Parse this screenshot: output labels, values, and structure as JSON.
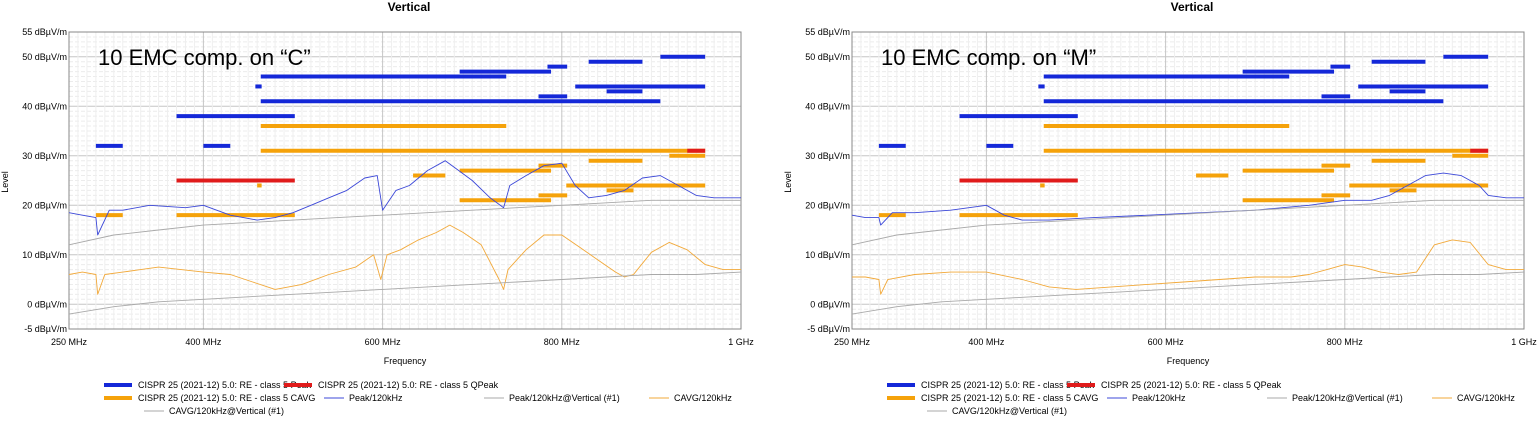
{
  "colors": {
    "peak_limit": "#1428d8",
    "qpeak_limit": "#e01b1b",
    "cavg_limit": "#f5a20a",
    "peak_trace": "#3c48d8",
    "cavg_trace": "#f2a93a",
    "ref_trace": "#a9a9a9"
  },
  "legend": [
    {
      "label": "CISPR 25 (2021-12) 5.0: RE - class 5 Peak",
      "style": "thick",
      "color": "#1428d8"
    },
    {
      "label": "CISPR 25 (2021-12) 5.0: RE - class 5 QPeak",
      "style": "thick",
      "color": "#e01b1b"
    },
    {
      "label": "CISPR 25 (2021-12) 5.0: RE - class 5 CAVG",
      "style": "thick",
      "color": "#f5a20a"
    },
    {
      "label": "Peak/120kHz",
      "style": "thin",
      "color": "#3c48d8"
    },
    {
      "label": "Peak/120kHz@Vertical (#1)",
      "style": "thin",
      "color": "#a9a9a9"
    },
    {
      "label": "CAVG/120kHz",
      "style": "thin",
      "color": "#f2a93a"
    },
    {
      "label": "CAVG/120kHz@Vertical (#1)",
      "style": "thin",
      "color": "#a9a9a9"
    }
  ],
  "chart_data": [
    {
      "type": "line",
      "title": "Vertical",
      "annotation": "10 EMC comp. on “C”",
      "xlabel": "Frequency",
      "ylabel": "Level",
      "xlim": [
        250,
        1000
      ],
      "ylim": [
        -5,
        55
      ],
      "x_ticks": [
        "250 MHz",
        "400 MHz",
        "600 MHz",
        "800 MHz",
        "1 GHz"
      ],
      "y_ticks": [
        "-5 dBµV/m",
        "0 dBµV/m",
        "10 dBµV/m",
        "20 dBµV/m",
        "30 dBµV/m",
        "40 dBµV/m",
        "50 dBµV/m",
        "55 dBµV/m"
      ],
      "limits": {
        "peak": [
          [
            280,
            310,
            32
          ],
          [
            370,
            502,
            38
          ],
          [
            400,
            430,
            32
          ],
          [
            458,
            465,
            44
          ],
          [
            464,
            738,
            46
          ],
          [
            464,
            910,
            41
          ],
          [
            686,
            788,
            47
          ],
          [
            774,
            806,
            42
          ],
          [
            784,
            806,
            48
          ],
          [
            815,
            960,
            44
          ],
          [
            830,
            890,
            49
          ],
          [
            850,
            890,
            43
          ],
          [
            910,
            960,
            50
          ]
        ],
        "qpeak": [
          [
            370,
            502,
            25
          ],
          [
            940,
            960,
            31
          ]
        ],
        "cavg": [
          [
            280,
            310,
            18
          ],
          [
            370,
            502,
            18
          ],
          [
            460,
            465,
            24
          ],
          [
            464,
            738,
            36
          ],
          [
            464,
            960,
            31
          ],
          [
            634,
            670,
            26
          ],
          [
            686,
            788,
            27
          ],
          [
            686,
            788,
            21
          ],
          [
            774,
            806,
            28
          ],
          [
            774,
            806,
            22
          ],
          [
            805,
            960,
            24
          ],
          [
            830,
            890,
            29
          ],
          [
            850,
            880,
            23
          ],
          [
            920,
            960,
            30
          ]
        ]
      },
      "series": [
        {
          "name": "Peak/120kHz",
          "x": [
            250,
            265,
            280,
            282,
            295,
            310,
            340,
            380,
            400,
            430,
            460,
            480,
            500,
            520,
            540,
            560,
            580,
            594,
            600,
            615,
            630,
            650,
            670,
            685,
            700,
            720,
            735,
            742,
            760,
            780,
            800,
            815,
            830,
            850,
            870,
            890,
            910,
            930,
            950,
            970,
            985,
            1000
          ],
          "y": [
            18.5,
            18,
            17.5,
            14,
            19,
            19,
            20,
            19.5,
            20,
            18,
            17,
            17.5,
            18.5,
            20,
            21.5,
            23,
            25.5,
            26,
            19,
            23,
            24,
            27,
            29,
            27,
            25,
            21.5,
            19.5,
            24,
            26,
            28,
            28.5,
            24,
            21.5,
            22,
            23,
            25.5,
            26,
            24,
            22,
            21.5,
            21.5,
            21.5
          ]
        },
        {
          "name": "Peak/120kHz@Vertical (#1)",
          "x": [
            250,
            300,
            350,
            400,
            450,
            500,
            550,
            600,
            650,
            700,
            750,
            800,
            850,
            900,
            950,
            1000
          ],
          "y": [
            12,
            14,
            15,
            16,
            16.5,
            17,
            17.5,
            18,
            18.5,
            19,
            19.5,
            20,
            20.5,
            21,
            21,
            21
          ]
        },
        {
          "name": "CAVG/120kHz",
          "x": [
            250,
            265,
            280,
            282,
            290,
            310,
            330,
            350,
            375,
            400,
            430,
            455,
            480,
            510,
            540,
            570,
            590,
            598,
            605,
            620,
            640,
            660,
            675,
            690,
            710,
            730,
            735,
            740,
            760,
            780,
            800,
            820,
            840,
            860,
            870,
            880,
            900,
            920,
            940,
            960,
            980,
            1000
          ],
          "y": [
            6,
            6.5,
            6,
            2,
            6,
            6.5,
            7,
            7.5,
            7,
            6.5,
            6,
            4.5,
            3,
            4,
            6,
            7.5,
            10,
            5,
            10,
            11,
            13,
            14.5,
            16,
            14.5,
            12,
            5,
            3,
            7,
            11,
            14,
            14,
            11.5,
            9,
            6.5,
            5.5,
            6,
            10.5,
            12.5,
            11,
            8,
            7,
            7
          ]
        },
        {
          "name": "CAVG/120kHz@Vertical (#1)",
          "x": [
            250,
            300,
            350,
            400,
            450,
            500,
            550,
            600,
            650,
            700,
            750,
            800,
            850,
            900,
            950,
            1000
          ],
          "y": [
            -2,
            -0.5,
            0.5,
            1,
            1.5,
            2,
            2.5,
            3,
            3.5,
            4,
            4.5,
            5,
            5.5,
            6,
            6,
            6.5
          ]
        }
      ]
    },
    {
      "type": "line",
      "title": "Vertical",
      "annotation": "10 EMC comp. on “M”",
      "xlabel": "Frequency",
      "ylabel": "Level",
      "xlim": [
        250,
        1000
      ],
      "ylim": [
        -5,
        55
      ],
      "x_ticks": [
        "250 MHz",
        "400 MHz",
        "600 MHz",
        "800 MHz",
        "1 GHz"
      ],
      "y_ticks": [
        "-5 dBµV/m",
        "0 dBµV/m",
        "10 dBµV/m",
        "20 dBµV/m",
        "30 dBµV/m",
        "40 dBµV/m",
        "50 dBµV/m",
        "55 dBµV/m"
      ],
      "limits": {
        "peak": [
          [
            280,
            310,
            32
          ],
          [
            370,
            502,
            38
          ],
          [
            400,
            430,
            32
          ],
          [
            458,
            465,
            44
          ],
          [
            464,
            738,
            46
          ],
          [
            464,
            910,
            41
          ],
          [
            686,
            788,
            47
          ],
          [
            774,
            806,
            42
          ],
          [
            784,
            806,
            48
          ],
          [
            815,
            960,
            44
          ],
          [
            830,
            890,
            49
          ],
          [
            850,
            890,
            43
          ],
          [
            910,
            960,
            50
          ]
        ],
        "qpeak": [
          [
            370,
            502,
            25
          ],
          [
            940,
            960,
            31
          ]
        ],
        "cavg": [
          [
            280,
            310,
            18
          ],
          [
            370,
            502,
            18
          ],
          [
            460,
            465,
            24
          ],
          [
            464,
            738,
            36
          ],
          [
            464,
            960,
            31
          ],
          [
            634,
            670,
            26
          ],
          [
            686,
            788,
            27
          ],
          [
            686,
            788,
            21
          ],
          [
            774,
            806,
            28
          ],
          [
            774,
            806,
            22
          ],
          [
            805,
            960,
            24
          ],
          [
            830,
            890,
            29
          ],
          [
            850,
            880,
            23
          ],
          [
            920,
            960,
            30
          ]
        ]
      },
      "series": [
        {
          "name": "Peak/120kHz",
          "x": [
            250,
            265,
            280,
            282,
            295,
            320,
            360,
            400,
            420,
            440,
            470,
            520,
            580,
            640,
            700,
            760,
            800,
            830,
            850,
            870,
            890,
            910,
            930,
            950,
            960,
            980,
            1000
          ],
          "y": [
            18,
            17.5,
            17.5,
            16,
            18.5,
            18.5,
            19,
            20,
            18,
            17,
            17,
            17.5,
            18,
            18.5,
            19,
            20,
            21,
            21,
            22,
            24,
            26,
            26.5,
            26,
            24,
            22,
            21.5,
            21.5
          ]
        },
        {
          "name": "Peak/120kHz@Vertical (#1)",
          "x": [
            250,
            300,
            350,
            400,
            450,
            500,
            550,
            600,
            650,
            700,
            750,
            800,
            850,
            900,
            950,
            1000
          ],
          "y": [
            12,
            14,
            15,
            16,
            16.5,
            17,
            17.5,
            18,
            18.5,
            19,
            19.5,
            20,
            20.5,
            21,
            21,
            21
          ]
        },
        {
          "name": "CAVG/120kHz",
          "x": [
            250,
            265,
            280,
            282,
            290,
            320,
            360,
            400,
            440,
            470,
            500,
            540,
            580,
            620,
            660,
            700,
            740,
            760,
            780,
            800,
            820,
            840,
            860,
            880,
            900,
            920,
            940,
            960,
            980,
            1000
          ],
          "y": [
            5.5,
            5.5,
            5,
            2,
            5,
            6,
            6.5,
            6.5,
            5,
            3.5,
            3,
            3.5,
            4,
            4.5,
            5,
            5.5,
            5.5,
            6,
            7,
            8,
            7.5,
            6.5,
            6,
            6.5,
            12,
            13,
            12.5,
            8,
            7,
            7
          ]
        },
        {
          "name": "CAVG/120kHz@Vertical (#1)",
          "x": [
            250,
            300,
            350,
            400,
            450,
            500,
            550,
            600,
            650,
            700,
            750,
            800,
            850,
            900,
            950,
            1000
          ],
          "y": [
            -2,
            -0.5,
            0.5,
            1,
            1.5,
            2,
            2.5,
            3,
            3.5,
            4,
            4.5,
            5,
            5.5,
            6,
            6,
            6.5
          ]
        }
      ]
    }
  ]
}
